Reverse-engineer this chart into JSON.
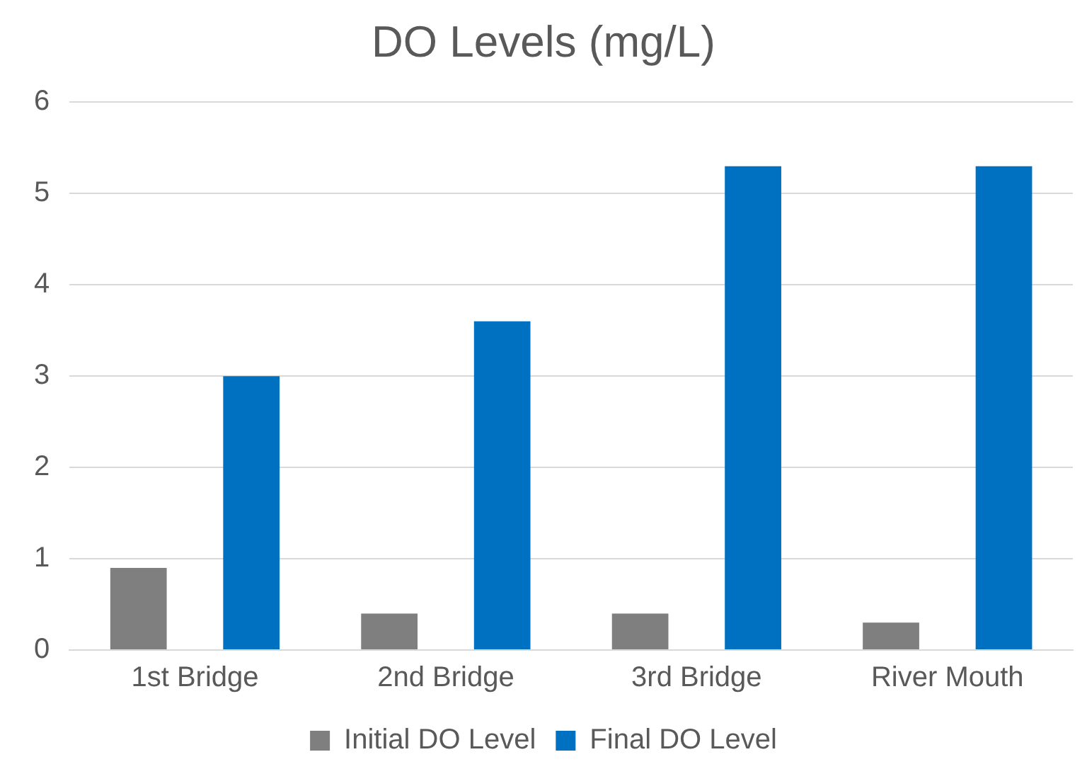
{
  "chart_data": {
    "type": "bar",
    "title": "DO Levels (mg/L)",
    "categories": [
      "1st Bridge",
      "2nd Bridge",
      "3rd Bridge",
      "River Mouth"
    ],
    "series": [
      {
        "name": "Initial DO Level",
        "color": "#7f7f7f",
        "values": [
          0.9,
          0.4,
          0.4,
          0.3
        ]
      },
      {
        "name": "Final DO Level",
        "color": "#0070c0",
        "values": [
          3.0,
          3.6,
          5.3,
          5.3
        ]
      }
    ],
    "ylim": [
      0,
      6
    ],
    "yticks": [
      0,
      1,
      2,
      3,
      4,
      5,
      6
    ],
    "grid": "y",
    "legend": "bottom"
  }
}
